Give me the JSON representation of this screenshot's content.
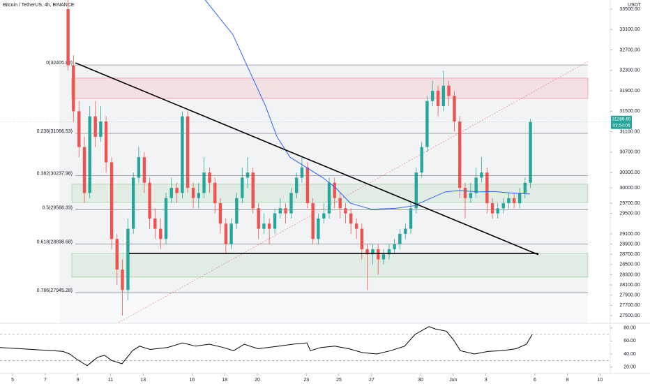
{
  "chart_data": {
    "type": "candlestick",
    "title": "Bitcoin / TetherUS, 4h, BINANCE",
    "currency": "USDT",
    "up_color": "#26a69a",
    "down_color": "#ef5350",
    "xlim": [
      4.23,
      41.62
    ],
    "ylim": [
      27363,
      33678
    ],
    "xticks": [
      5,
      7,
      9,
      11,
      13,
      16,
      18,
      20,
      23,
      25,
      27,
      30,
      {
        "value": 32,
        "label": "Jun"
      },
      {
        "value": 34,
        "label": "3"
      },
      {
        "value": 37,
        "label": "6"
      },
      {
        "value": 39,
        "label": "8"
      },
      {
        "value": 41,
        "label": "10"
      }
    ],
    "yticks": [
      {
        "value": 33500,
        "label": "33500.00"
      },
      {
        "value": 33100,
        "label": "33100.00"
      },
      {
        "value": 32700,
        "label": "32700.00"
      },
      {
        "value": 32300,
        "label": "32300.00"
      },
      {
        "value": 31900,
        "label": "31900.00"
      },
      {
        "value": 31500,
        "label": "31500.00"
      },
      {
        "value": 31100,
        "label": "31100.00"
      },
      {
        "value": 30700,
        "label": "30700.00"
      },
      {
        "value": 30300,
        "label": "30300.00"
      },
      {
        "value": 30000,
        "label": "30000.00"
      },
      {
        "value": 29700,
        "label": "29700.00"
      },
      {
        "value": 29500,
        "label": "29500.00"
      },
      {
        "value": 29100,
        "label": "29100.00"
      },
      {
        "value": 28900,
        "label": "28900.00"
      },
      {
        "value": 28700,
        "label": "28700.00"
      },
      {
        "value": 28500,
        "label": "28500.00"
      },
      {
        "value": 28300,
        "label": "28300.00"
      },
      {
        "value": 28100,
        "label": "28100.00"
      },
      {
        "value": 27900,
        "label": "27900.00"
      },
      {
        "value": 27700,
        "label": "27700.00"
      },
      {
        "value": 27500,
        "label": "27500.00"
      }
    ],
    "last_price": {
      "value": 31289.65,
      "label": "31289.65"
    },
    "countdown": "03:54:06",
    "candles": [
      [
        8.4,
        33500,
        33700,
        32300,
        32400
      ],
      [
        8.73,
        32400,
        32600,
        31300,
        31500
      ],
      [
        9.07,
        31500,
        31700,
        30600,
        30800
      ],
      [
        9.4,
        30800,
        31000,
        29700,
        29900
      ],
      [
        9.73,
        29900,
        31600,
        29800,
        31400
      ],
      [
        10.07,
        31400,
        31700,
        30800,
        31000
      ],
      [
        10.4,
        31000,
        31600,
        30900,
        31300
      ],
      [
        10.73,
        31300,
        31400,
        30300,
        30500
      ],
      [
        11.07,
        30500,
        30600,
        28800,
        29000
      ],
      [
        11.4,
        29000,
        29100,
        28100,
        28400
      ],
      [
        11.73,
        28400,
        28600,
        27500,
        28000
      ],
      [
        12.07,
        28000,
        29400,
        27800,
        29200
      ],
      [
        12.4,
        29200,
        30300,
        29100,
        30200
      ],
      [
        12.73,
        30200,
        30800,
        30100,
        30600
      ],
      [
        13.07,
        30600,
        30700,
        29900,
        30100
      ],
      [
        13.4,
        30100,
        30200,
        29200,
        29400
      ],
      [
        13.73,
        29400,
        29600,
        29000,
        29200
      ],
      [
        14.07,
        29200,
        29400,
        28800,
        29000
      ],
      [
        14.4,
        29000,
        29900,
        28900,
        29800
      ],
      [
        14.73,
        29800,
        30200,
        29700,
        30000
      ],
      [
        15.07,
        30000,
        30100,
        29700,
        29900
      ],
      [
        15.4,
        29900,
        31500,
        29800,
        31400
      ],
      [
        15.73,
        31400,
        31500,
        29900,
        30000
      ],
      [
        16.07,
        30000,
        30100,
        29600,
        29800
      ],
      [
        16.4,
        29800,
        30100,
        29600,
        29900
      ],
      [
        16.73,
        29900,
        30600,
        29800,
        30300
      ],
      [
        17.07,
        30300,
        30400,
        29900,
        30100
      ],
      [
        17.4,
        30100,
        30200,
        29500,
        29700
      ],
      [
        17.73,
        29700,
        29800,
        29100,
        29300
      ],
      [
        18.07,
        29300,
        29400,
        28700,
        28900
      ],
      [
        18.4,
        28900,
        29400,
        28800,
        29300
      ],
      [
        18.73,
        29300,
        29900,
        29200,
        29800
      ],
      [
        19.07,
        29800,
        30400,
        29700,
        30200
      ],
      [
        19.4,
        30200,
        30600,
        30000,
        30300
      ],
      [
        19.73,
        30300,
        30400,
        29500,
        29600
      ],
      [
        20.07,
        29600,
        29700,
        29000,
        29200
      ],
      [
        20.4,
        29200,
        29500,
        29100,
        29300
      ],
      [
        20.73,
        29300,
        29400,
        28900,
        29200
      ],
      [
        21.07,
        29200,
        29600,
        29100,
        29500
      ],
      [
        21.4,
        29500,
        29800,
        29400,
        29600
      ],
      [
        21.73,
        29600,
        29700,
        29300,
        29500
      ],
      [
        22.07,
        29500,
        30000,
        29400,
        29900
      ],
      [
        22.4,
        29900,
        30300,
        29800,
        30200
      ],
      [
        22.73,
        30200,
        30600,
        30100,
        30400
      ],
      [
        23.07,
        30400,
        30500,
        29600,
        29700
      ],
      [
        23.4,
        29700,
        29800,
        28900,
        29000
      ],
      [
        23.73,
        29000,
        29500,
        28900,
        29400
      ],
      [
        24.07,
        29400,
        29700,
        29300,
        29500
      ],
      [
        24.4,
        29500,
        30200,
        29400,
        30100
      ],
      [
        24.73,
        30100,
        30200,
        29600,
        29800
      ],
      [
        25.07,
        29800,
        29900,
        29400,
        29600
      ],
      [
        25.4,
        29600,
        29700,
        29300,
        29500
      ],
      [
        25.73,
        29500,
        29600,
        29100,
        29300
      ],
      [
        26.07,
        29300,
        29400,
        29000,
        29200
      ],
      [
        26.4,
        29200,
        29300,
        28600,
        28800
      ],
      [
        26.73,
        28800,
        28900,
        28000,
        28700
      ],
      [
        27.07,
        28700,
        28900,
        28500,
        28800
      ],
      [
        27.4,
        28800,
        28900,
        28300,
        28600
      ],
      [
        27.73,
        28600,
        28800,
        28500,
        28700
      ],
      [
        28.07,
        28700,
        28900,
        28600,
        28800
      ],
      [
        28.4,
        28800,
        29000,
        28700,
        28900
      ],
      [
        28.73,
        28900,
        29200,
        28800,
        29100
      ],
      [
        29.07,
        29100,
        29300,
        29000,
        29200
      ],
      [
        29.4,
        29200,
        29700,
        29100,
        29600
      ],
      [
        29.73,
        29600,
        30400,
        29500,
        30300
      ],
      [
        30.07,
        30300,
        30900,
        30200,
        30800
      ],
      [
        30.4,
        30800,
        31800,
        30700,
        31700
      ],
      [
        30.73,
        31700,
        32100,
        31600,
        31900
      ],
      [
        31.07,
        31900,
        32000,
        31400,
        31600
      ],
      [
        31.4,
        31600,
        32300,
        31500,
        32000
      ],
      [
        31.73,
        32000,
        32100,
        31600,
        31800
      ],
      [
        32.07,
        31800,
        31900,
        31100,
        31300
      ],
      [
        32.4,
        31300,
        31400,
        29800,
        30000
      ],
      [
        32.73,
        30000,
        30100,
        29400,
        29800
      ],
      [
        33.07,
        29800,
        30100,
        29700,
        29900
      ],
      [
        33.4,
        29900,
        30400,
        29800,
        30200
      ],
      [
        33.73,
        30200,
        30600,
        30100,
        30300
      ],
      [
        34.07,
        30300,
        30400,
        29500,
        29700
      ],
      [
        34.4,
        29700,
        29800,
        29400,
        29500
      ],
      [
        34.73,
        29500,
        29700,
        29400,
        29600
      ],
      [
        35.07,
        29600,
        29800,
        29500,
        29700
      ],
      [
        35.4,
        29700,
        29900,
        29600,
        29800
      ],
      [
        35.73,
        29800,
        29900,
        29600,
        29700
      ],
      [
        36.07,
        29700,
        30000,
        29600,
        29900
      ],
      [
        36.4,
        29900,
        30200,
        29800,
        30100
      ],
      [
        36.73,
        30100,
        31350,
        30000,
        31289.65
      ]
    ],
    "ema": {
      "color": "#2962ff",
      "x": [
        16.8,
        18.5,
        19.5,
        20.5,
        21.2,
        22,
        23,
        24,
        24.8,
        25.7,
        27,
        28.5,
        29.6,
        30.5,
        31.5,
        32.4,
        33.5,
        34.5,
        35.5,
        36.7
      ],
      "values": [
        33680,
        33000,
        32300,
        31600,
        31000,
        30600,
        30400,
        30200,
        30000,
        29700,
        29580,
        29600,
        29650,
        29780,
        29920,
        29950,
        29920,
        29930,
        29900,
        29880
      ]
    },
    "fib_levels": [
      {
        "label": "0(32405.83)",
        "value": 32405.83
      },
      {
        "label": "0.236(31066.53)",
        "value": 31066.53
      },
      {
        "label": "0.382(30237.98)",
        "value": 30237.98
      },
      {
        "label": "0.5(29568.33)",
        "value": 29568.33
      },
      {
        "label": "0.618(28898.68)",
        "value": 28898.68
      },
      {
        "label": "0.786(27945.28)",
        "value": 27945.28
      }
    ],
    "zones": [
      {
        "top": 32148,
        "bottom": 31751,
        "start": 8.63,
        "end": 40.25,
        "color": "#f23645"
      },
      {
        "top": 30071,
        "bottom": 29716,
        "start": 8.63,
        "end": 40.25,
        "color": "#4caf50"
      },
      {
        "top": 28718,
        "bottom": 28254,
        "start": 8.63,
        "end": 40.25,
        "color": "#4caf50"
      }
    ],
    "trendlines": [
      {
        "x": [
          8.85,
          37.22
        ],
        "values": [
          32448,
          28691
        ],
        "color": "#000000"
      },
      {
        "x": [
          12.14,
          37.22
        ],
        "values": [
          28718,
          28718
        ],
        "color": "#000000"
      }
    ],
    "guide": {
      "x": [
        11.5,
        40.25
      ],
      "values": [
        27363,
        32475
      ],
      "color": "#f23645"
    },
    "rsi": {
      "color": "#000000",
      "ylim": [
        10,
        85
      ],
      "yticks": [
        {
          "value": 80,
          "label": "80.00"
        },
        {
          "value": 60,
          "label": "60.00"
        },
        {
          "value": 40,
          "label": "40.00"
        },
        {
          "value": 20,
          "label": "20.00"
        }
      ],
      "bands": [
        70,
        30
      ],
      "x": [
        4.23,
        5.51,
        6.79,
        8.08,
        8.5,
        8.93,
        9.57,
        10.21,
        10.64,
        11.07,
        11.71,
        12.35,
        12.78,
        13.42,
        14.49,
        15.43,
        16.2,
        17.05,
        17.91,
        18.55,
        19.19,
        20.04,
        21.32,
        22.18,
        23.03,
        23.25,
        23.89,
        24.74,
        25.6,
        26.45,
        27.31,
        28.16,
        29.02,
        29.66,
        30.51,
        30.94,
        31.58,
        32.01,
        32.44,
        33.29,
        34.15,
        35.0,
        35.85,
        36.49,
        36.84
      ],
      "values": [
        50,
        48,
        46,
        44,
        40,
        32,
        22,
        35,
        38,
        30,
        25,
        45,
        52,
        47,
        50,
        57,
        52,
        55,
        50,
        45,
        55,
        48,
        52,
        55,
        57,
        45,
        50,
        52,
        48,
        42,
        40,
        45,
        52,
        70,
        82,
        78,
        75,
        62,
        45,
        40,
        44,
        45,
        48,
        55,
        70
      ]
    }
  }
}
